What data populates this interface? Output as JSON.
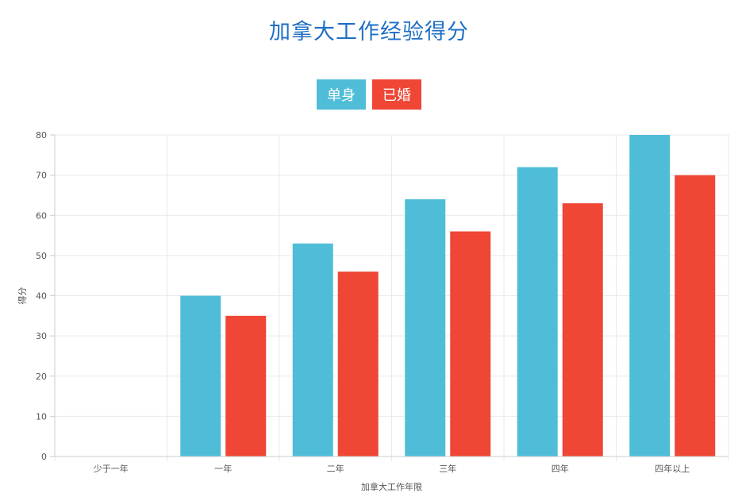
{
  "chart_data": {
    "type": "bar",
    "title": "加拿大工作经验得分",
    "xlabel": "加拿大工作年限",
    "ylabel": "得分",
    "categories": [
      "少于一年",
      "一年",
      "二年",
      "三年",
      "四年",
      "四年以上"
    ],
    "series": [
      {
        "name": "单身",
        "color": "#4fbdd8",
        "values": [
          0,
          40,
          53,
          64,
          72,
          80
        ]
      },
      {
        "name": "已婚",
        "color": "#ef4635",
        "values": [
          0,
          35,
          46,
          56,
          63,
          70
        ]
      }
    ],
    "ylim": [
      0,
      80
    ],
    "yticks": [
      0,
      10,
      20,
      30,
      40,
      50,
      60,
      70,
      80
    ],
    "grid": true,
    "legend_position": "top-center"
  }
}
